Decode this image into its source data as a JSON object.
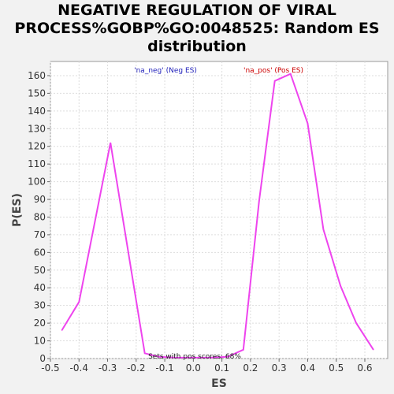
{
  "chart_data": {
    "type": "line",
    "title_lines": [
      "NEGATIVE REGULATION OF VIRAL",
      "PROCESS%GOBP%GO:0048525: Random ES",
      "distribution"
    ],
    "xlabel": "ES",
    "ylabel": "P(ES)",
    "xlim": [
      -0.5,
      0.68
    ],
    "ylim": [
      0,
      168
    ],
    "xticks": [
      "-0.5",
      "-0.4",
      "-0.3",
      "-0.2",
      "-0.1",
      "0.0",
      "0.1",
      "0.2",
      "0.3",
      "0.4",
      "0.5",
      "0.6"
    ],
    "yticks": [
      "0",
      "10",
      "20",
      "30",
      "40",
      "50",
      "60",
      "70",
      "80",
      "90",
      "100",
      "110",
      "120",
      "130",
      "140",
      "150",
      "160"
    ],
    "grid": true,
    "legend": {
      "neg_label": "'na_neg' (Neg ES)",
      "pos_label": "'na_pos' (Pos ES)",
      "neg_color": "#2222bb",
      "pos_color": "#cc0000"
    },
    "annotation": "Sets with pos scores: 68%",
    "series": [
      {
        "color": "#ee44ee",
        "x": [
          -0.46,
          -0.4,
          -0.29,
          -0.17,
          -0.12,
          -0.06,
          0.0,
          0.06,
          0.12,
          0.175,
          0.23,
          0.285,
          0.34,
          0.4,
          0.455,
          0.515,
          0.57,
          0.63
        ],
        "y": [
          16,
          32,
          122,
          3,
          1,
          0.5,
          0.5,
          0.5,
          1,
          5,
          89,
          157,
          161,
          133,
          73,
          41,
          20,
          5
        ]
      }
    ]
  }
}
